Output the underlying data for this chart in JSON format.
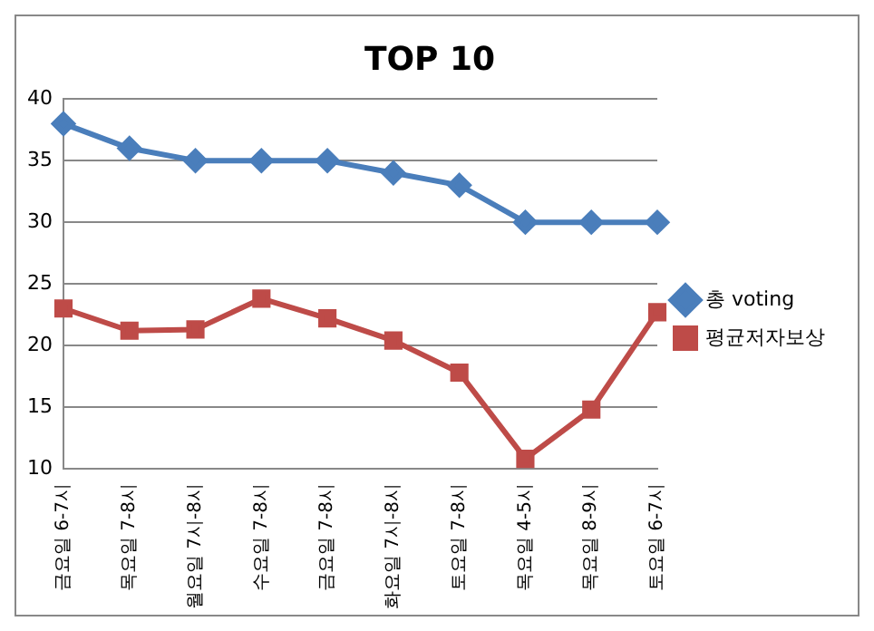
{
  "chart_data": {
    "type": "line",
    "title": "TOP 10",
    "categories": [
      "금요일 6-7시",
      "목요일 7-8시",
      "월요일 7시-8시",
      "수요일 7-8시",
      "금요일 7-8시",
      "화요일 7시-8시",
      "토요일 7-8시",
      "목요일 4-5시",
      "목요일 8-9시",
      "토요일 6-7시"
    ],
    "series": [
      {
        "name": "총 voting",
        "color": "#4a7ebb",
        "marker": "diamond",
        "values": [
          38,
          36,
          35,
          35,
          35,
          34,
          33,
          30,
          30,
          30
        ]
      },
      {
        "name": "평균저자보상",
        "color": "#be4b48",
        "marker": "square",
        "values": [
          23,
          21.2,
          21.3,
          23.8,
          22.2,
          20.4,
          17.8,
          10.8,
          14.8,
          22.7
        ]
      }
    ],
    "ylim": [
      10,
      40
    ],
    "yticks": [
      10,
      15,
      20,
      25,
      30,
      35,
      40
    ],
    "grid": "y",
    "legend": "right",
    "line_style": "solid"
  }
}
